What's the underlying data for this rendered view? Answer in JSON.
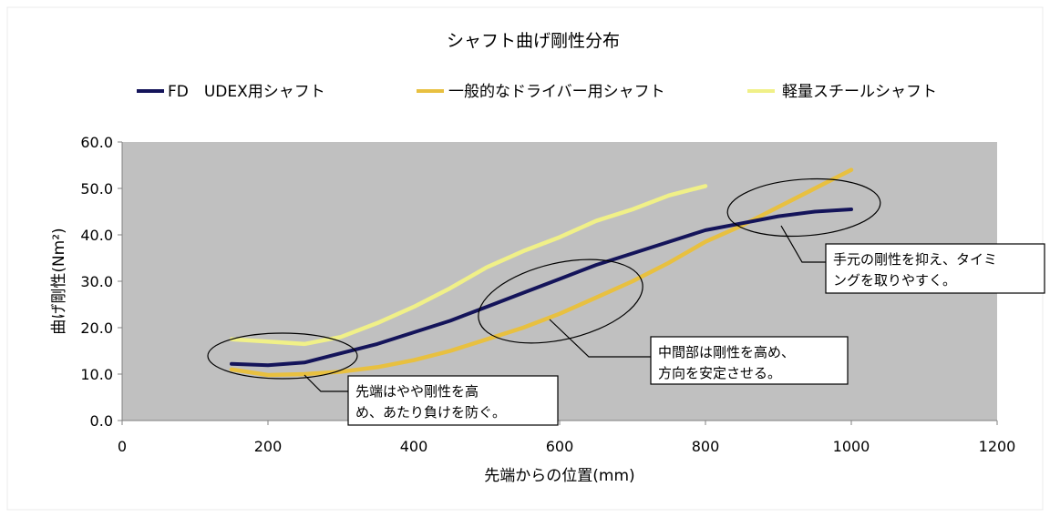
{
  "chart_data": {
    "type": "line",
    "title": "シャフト曲げ剛性分布",
    "xlabel": "先端からの位置(mm)",
    "ylabel": "曲げ剛性(Nm²)",
    "xlim": [
      0,
      1200
    ],
    "ylim": [
      0,
      60
    ],
    "x_ticks": [
      "0",
      "200",
      "400",
      "600",
      "800",
      "1000",
      "1200"
    ],
    "y_ticks": [
      "0.0",
      "10.0",
      "20.0",
      "30.0",
      "40.0",
      "50.0",
      "60.0"
    ],
    "grid": false,
    "legend_position": "top",
    "plot_background": "#c0c0c0",
    "series": [
      {
        "name": "FD　UDEX用シャフト",
        "color": "#14145a",
        "x": [
          150,
          200,
          250,
          300,
          350,
          400,
          450,
          500,
          550,
          600,
          650,
          700,
          750,
          800,
          850,
          900,
          950,
          1000
        ],
        "y": [
          12.2,
          11.9,
          12.5,
          14.5,
          16.5,
          19.0,
          21.5,
          24.5,
          27.5,
          30.5,
          33.5,
          36.0,
          38.5,
          41.0,
          42.5,
          44.0,
          45.0,
          45.5
        ]
      },
      {
        "name": "一般的なドライバー用シャフト",
        "color": "#e8c040",
        "x": [
          150,
          200,
          250,
          300,
          350,
          400,
          450,
          500,
          550,
          600,
          650,
          700,
          750,
          800,
          850,
          900,
          950,
          1000
        ],
        "y": [
          11.0,
          9.8,
          10.0,
          10.5,
          11.5,
          13.0,
          15.0,
          17.5,
          20.0,
          23.0,
          26.5,
          30.0,
          34.0,
          38.5,
          42.0,
          46.0,
          50.0,
          54.0
        ]
      },
      {
        "name": "軽量スチールシャフト",
        "color": "#f0f088",
        "x": [
          150,
          200,
          250,
          300,
          350,
          400,
          450,
          500,
          550,
          600,
          650,
          700,
          750,
          800
        ],
        "y": [
          17.5,
          17.0,
          16.5,
          18.0,
          21.0,
          24.5,
          28.5,
          33.0,
          36.5,
          39.5,
          43.0,
          45.5,
          48.5,
          50.5
        ]
      }
    ],
    "annotations": [
      {
        "lines": [
          "先端はやや剛性を高",
          "め、あたり負けを防ぐ。"
        ],
        "target": [
          200,
          13
        ]
      },
      {
        "lines": [
          "中間部は剛性を高め、",
          "方向を安定させる。"
        ],
        "target": [
          580,
          26
        ]
      },
      {
        "lines": [
          "手元の剛性を抑え、タイミ",
          "ングを取りやすく。"
        ],
        "target": [
          890,
          44
        ]
      }
    ]
  }
}
